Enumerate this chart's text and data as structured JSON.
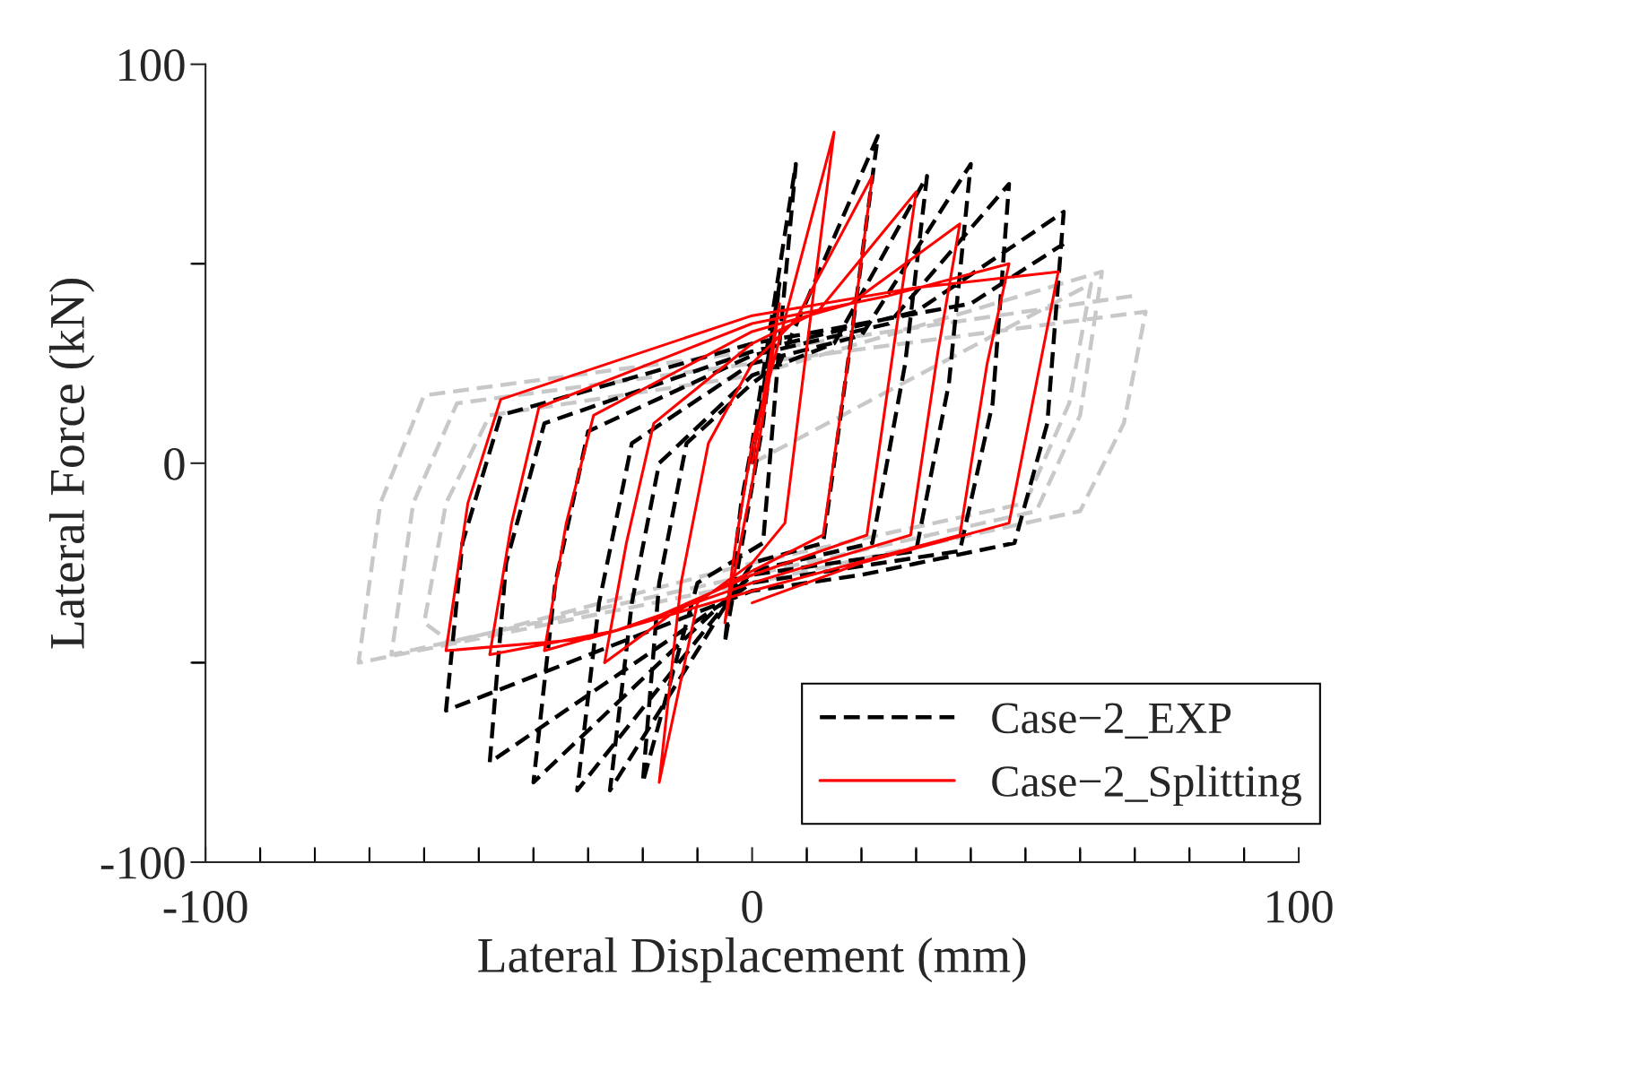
{
  "chart_data": {
    "type": "line",
    "xlabel": "Lateral Displacement (mm)",
    "ylabel": "Lateral Force (kN)",
    "xlim": [
      -100,
      100
    ],
    "ylim": [
      -100,
      100
    ],
    "xticks": [
      -100,
      {
        "value": -90,
        "label": null
      },
      {
        "value": -80,
        "label": null
      },
      {
        "value": -70,
        "label": null
      },
      {
        "value": -60,
        "label": null
      },
      {
        "value": -50,
        "label": null
      },
      {
        "value": -40,
        "label": null
      },
      {
        "value": -30,
        "label": null
      },
      {
        "value": -20,
        "label": null
      },
      {
        "value": -10,
        "label": null
      },
      0,
      {
        "value": 10,
        "label": null
      },
      {
        "value": 20,
        "label": null
      },
      {
        "value": 30,
        "label": null
      },
      {
        "value": 40,
        "label": null
      },
      {
        "value": 50,
        "label": null
      },
      {
        "value": 60,
        "label": null
      },
      {
        "value": 70,
        "label": null
      },
      {
        "value": 80,
        "label": null
      },
      {
        "value": 90,
        "label": null
      },
      100
    ],
    "yticks": [
      -100,
      {
        "value": -50,
        "label": null
      },
      0,
      {
        "value": 50,
        "label": null
      },
      100
    ],
    "legend": "lower right",
    "series": [
      {
        "color": "#c8c8c8",
        "line_style": "dashed",
        "x": [
          0,
          62,
          58,
          50,
          0,
          -55,
          -60,
          -56,
          -48,
          0,
          64,
          60,
          52,
          0,
          -66,
          -62,
          -54,
          0,
          72,
          68,
          60,
          0,
          -72,
          -68,
          -60,
          0,
          70
        ],
        "values": [
          0,
          45,
          15,
          -10,
          -25,
          -45,
          -40,
          -10,
          12,
          22,
          48,
          12,
          -12,
          -28,
          -48,
          -10,
          15,
          25,
          38,
          10,
          -12,
          -30,
          -50,
          -10,
          17,
          28,
          42
        ]
      },
      {
        "name": "Case−2_EXP",
        "color": "#000000",
        "line_style": "dashed",
        "x": [
          0,
          5,
          2,
          -5,
          -2,
          0,
          8,
          5,
          2,
          -10,
          -20,
          -17,
          -12,
          0,
          5,
          23,
          18,
          13,
          0,
          -26,
          -22,
          -17,
          0,
          15,
          32,
          28,
          22,
          0,
          -32,
          -28,
          -22,
          0,
          20,
          40,
          36,
          30,
          0,
          -40,
          -36,
          -30,
          0,
          25,
          47,
          44,
          38,
          0,
          -48,
          -45,
          -38,
          0,
          30,
          57,
          54,
          48,
          20,
          0,
          -56,
          -53,
          -46,
          0,
          40,
          57
        ],
        "values": [
          0,
          45,
          10,
          -45,
          -10,
          5,
          75,
          30,
          -20,
          -30,
          -80,
          -30,
          5,
          20,
          25,
          82,
          30,
          -20,
          -25,
          -82,
          -35,
          0,
          22,
          30,
          72,
          25,
          -20,
          -27,
          -82,
          -35,
          5,
          25,
          32,
          75,
          20,
          -22,
          -28,
          -80,
          -30,
          8,
          27,
          35,
          70,
          15,
          -22,
          -30,
          -75,
          -25,
          10,
          28,
          38,
          63,
          10,
          -20,
          -28,
          -32,
          -62,
          -20,
          12,
          30,
          40,
          55
        ]
      },
      {
        "name": "Case−2_Splitting",
        "color": "#ff0000",
        "line_style": "solid",
        "x": [
          0,
          5,
          3,
          0,
          -5,
          -3,
          0,
          15,
          11,
          6,
          0,
          -10,
          -17,
          -13,
          -8,
          0,
          8,
          22,
          18,
          13,
          0,
          -15,
          -27,
          -23,
          -18,
          0,
          12,
          30,
          26,
          21,
          0,
          -20,
          -38,
          -34,
          -29,
          0,
          18,
          38,
          34,
          29,
          0,
          -25,
          -48,
          -44,
          -39,
          0,
          25,
          47,
          43,
          38,
          0,
          -30,
          -56,
          -52,
          -46,
          0,
          30,
          56,
          52,
          47,
          20,
          0
        ],
        "values": [
          0,
          40,
          20,
          -5,
          -40,
          -20,
          5,
          83,
          40,
          -15,
          -25,
          -35,
          -80,
          -30,
          5,
          25,
          36,
          72,
          30,
          -18,
          -27,
          -38,
          -50,
          -20,
          10,
          30,
          38,
          68,
          30,
          -18,
          -28,
          -40,
          -47,
          -15,
          12,
          33,
          40,
          60,
          28,
          -18,
          -30,
          -42,
          -48,
          -15,
          14,
          35,
          42,
          50,
          25,
          -18,
          -32,
          -44,
          -47,
          -10,
          16,
          37,
          44,
          48,
          20,
          -15,
          -25,
          -35
        ]
      }
    ]
  }
}
